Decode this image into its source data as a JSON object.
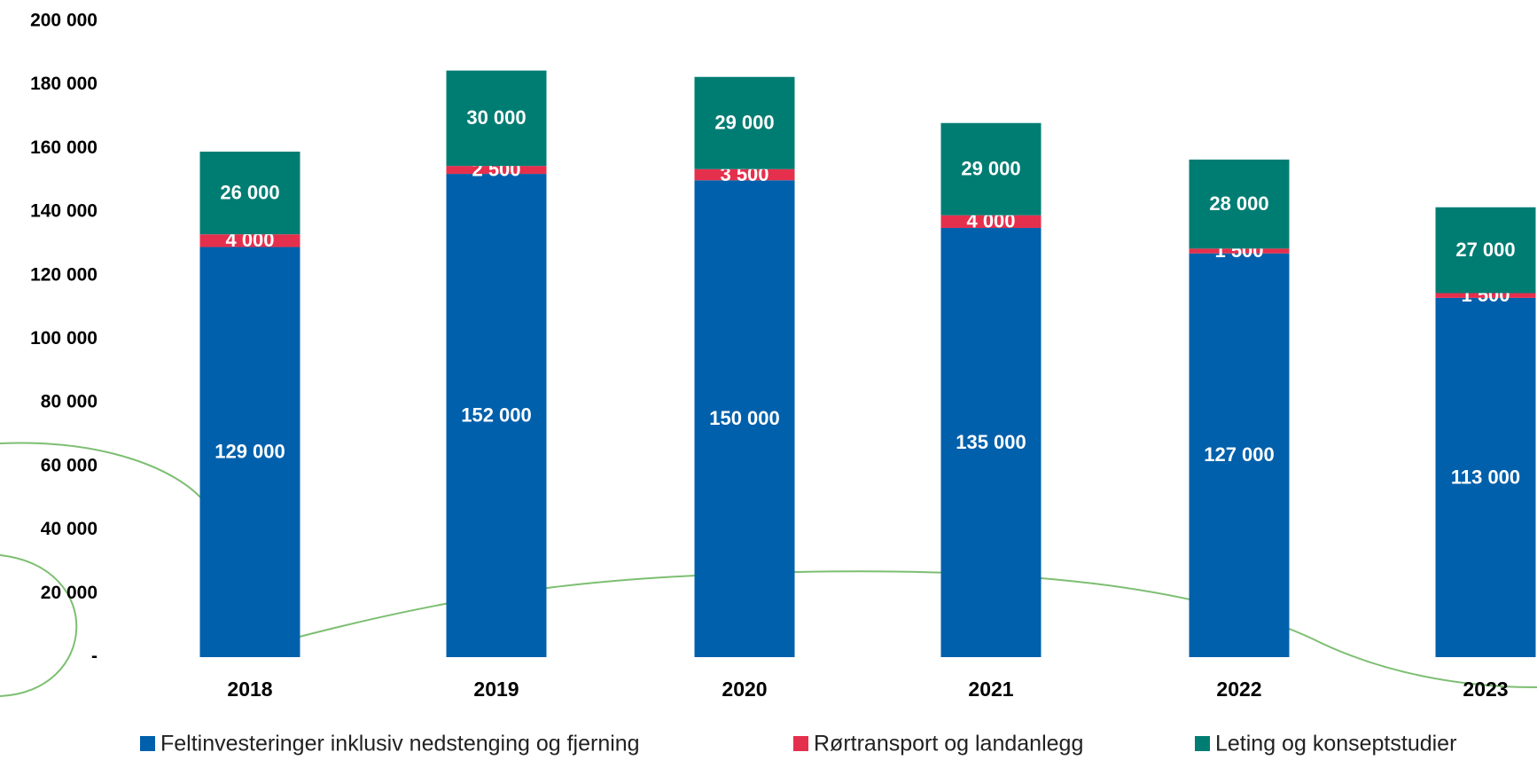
{
  "chart_data": {
    "type": "stacked_bar",
    "categories": [
      "2018",
      "2019",
      "2020",
      "2021",
      "2022",
      "2023"
    ],
    "series": [
      {
        "name": "Feltinvesteringer inklusiv nedstenging og fjerning",
        "color": "#0060ab",
        "values": [
          129000,
          152000,
          150000,
          135000,
          127000,
          113000
        ],
        "value_labels": [
          "129 000",
          "152 000",
          "150 000",
          "135 000",
          "127 000",
          "113 000"
        ]
      },
      {
        "name": "Rørtransport og landanlegg",
        "color": "#e5304d",
        "values": [
          4000,
          2500,
          3500,
          4000,
          1500,
          1500
        ],
        "value_labels": [
          "4 000",
          "2 500",
          "3 500",
          "4 000",
          "1 500",
          "1 500"
        ]
      },
      {
        "name": "Leting og konseptstudier",
        "color": "#007d73",
        "values": [
          26000,
          30000,
          29000,
          29000,
          28000,
          27000
        ],
        "value_labels": [
          "26 000",
          "30 000",
          "29 000",
          "29 000",
          "28 000",
          "27 000"
        ]
      }
    ],
    "ylim": [
      0,
      200000
    ],
    "yticks": [
      {
        "value": 0,
        "label": "-"
      },
      {
        "value": 20000,
        "label": "20 000"
      },
      {
        "value": 40000,
        "label": "40 000"
      },
      {
        "value": 60000,
        "label": "60 000"
      },
      {
        "value": 80000,
        "label": "80 000"
      },
      {
        "value": 100000,
        "label": "100 000"
      },
      {
        "value": 120000,
        "label": "120 000"
      },
      {
        "value": 140000,
        "label": "140 000"
      },
      {
        "value": 160000,
        "label": "160 000"
      },
      {
        "value": 180000,
        "label": "180 000"
      },
      {
        "value": 200000,
        "label": "200 000"
      }
    ],
    "grid": false,
    "legend": "bottom"
  }
}
